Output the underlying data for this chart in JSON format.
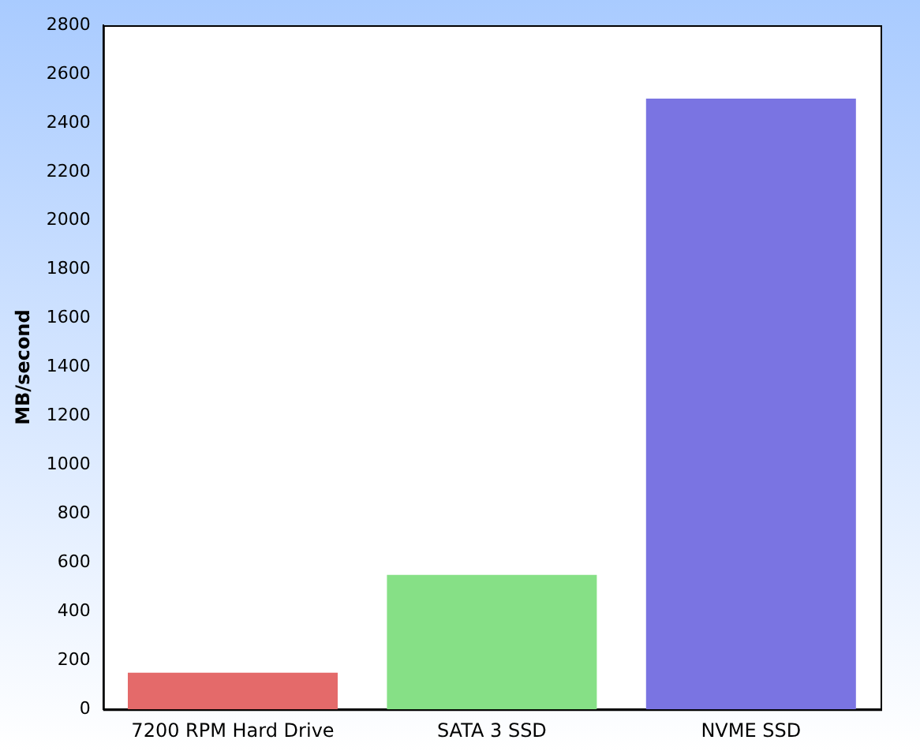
{
  "chart_data": {
    "type": "bar",
    "ylabel": "MB/second",
    "categories": [
      "7200 RPM Hard Drive",
      "SATA 3 SSD",
      "NVME SSD"
    ],
    "values": [
      150,
      550,
      2500
    ],
    "colors": [
      "#e46a6a",
      "#86e086",
      "#7a74e2"
    ],
    "ylim": [
      0,
      2800
    ],
    "yticks": [
      0,
      200,
      400,
      600,
      800,
      1000,
      1200,
      1400,
      1600,
      1800,
      2000,
      2200,
      2400,
      2600,
      2800
    ],
    "grid": false,
    "legend": false
  }
}
